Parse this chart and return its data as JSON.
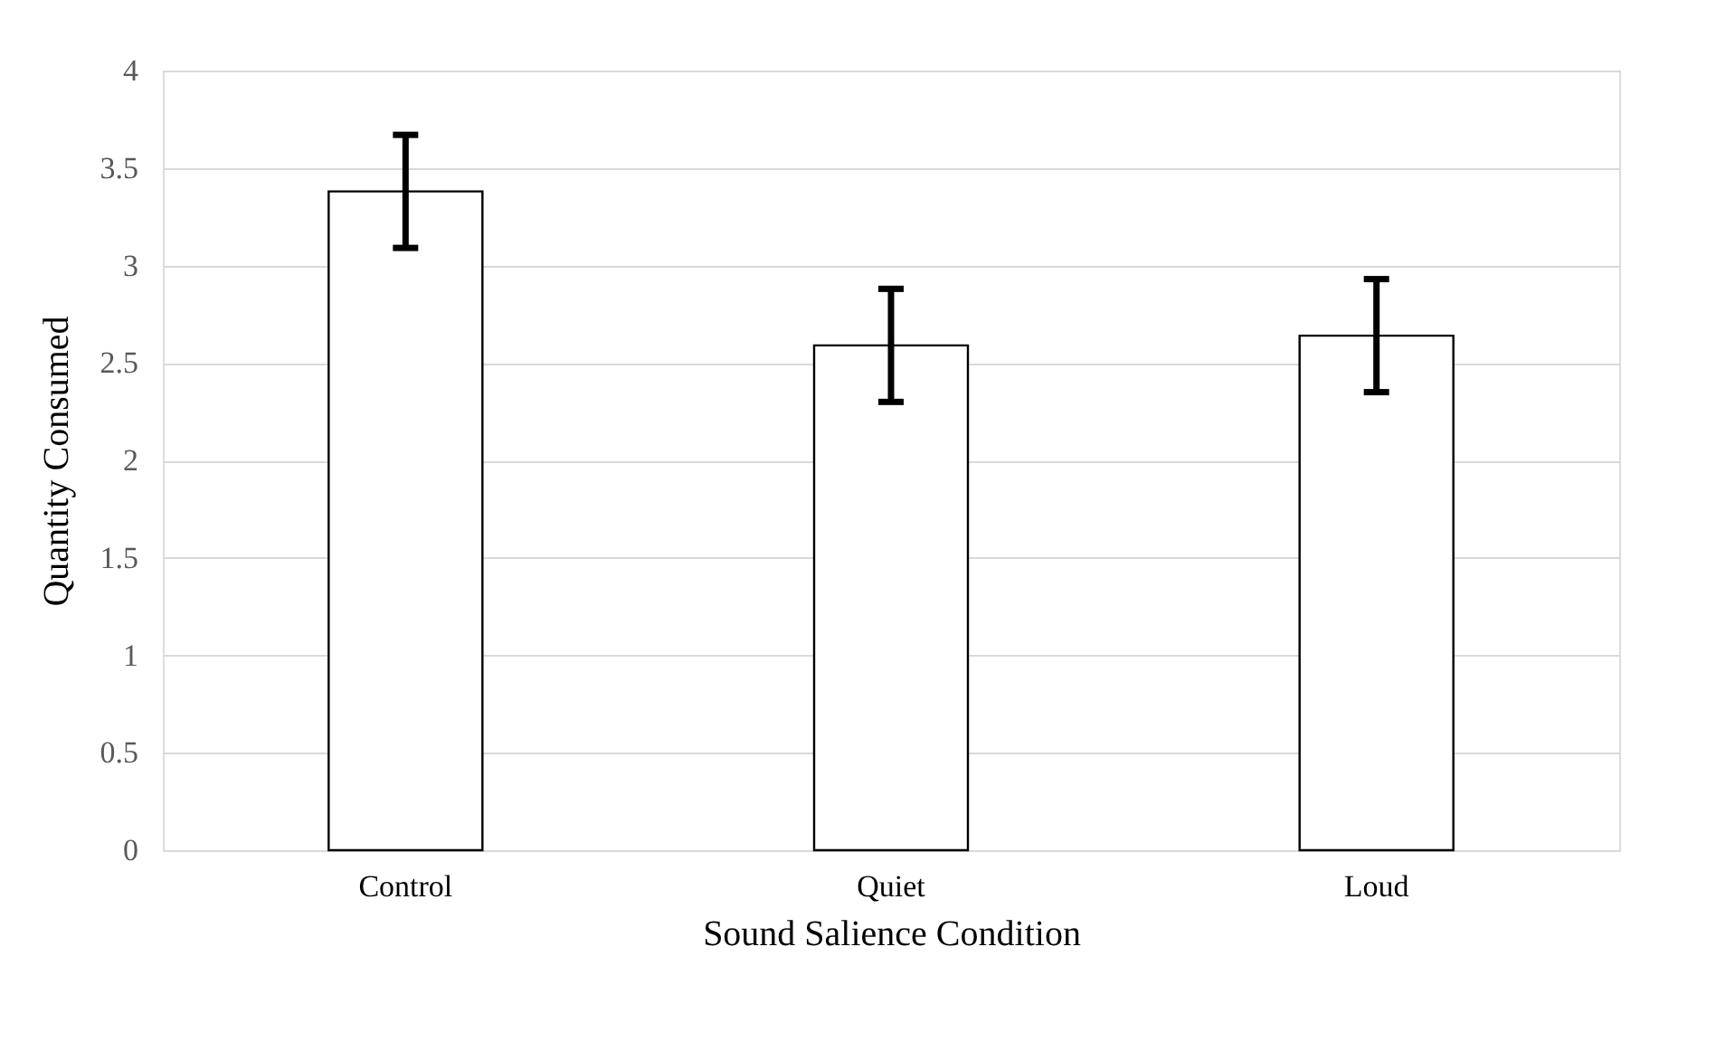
{
  "chart_data": {
    "type": "bar",
    "xlabel": "Sound Salience Condition",
    "ylabel": "Quantity Consumed",
    "categories": [
      "Control",
      "Quiet",
      "Loud"
    ],
    "values": [
      3.38,
      2.59,
      2.64
    ],
    "errors": [
      0.29,
      0.29,
      0.29
    ],
    "color": "#ffffff",
    "ylim": [
      0,
      4
    ],
    "yticks": [
      0,
      0.5,
      1,
      1.5,
      2,
      2.5,
      3,
      3.5,
      4
    ],
    "grid": "y"
  }
}
